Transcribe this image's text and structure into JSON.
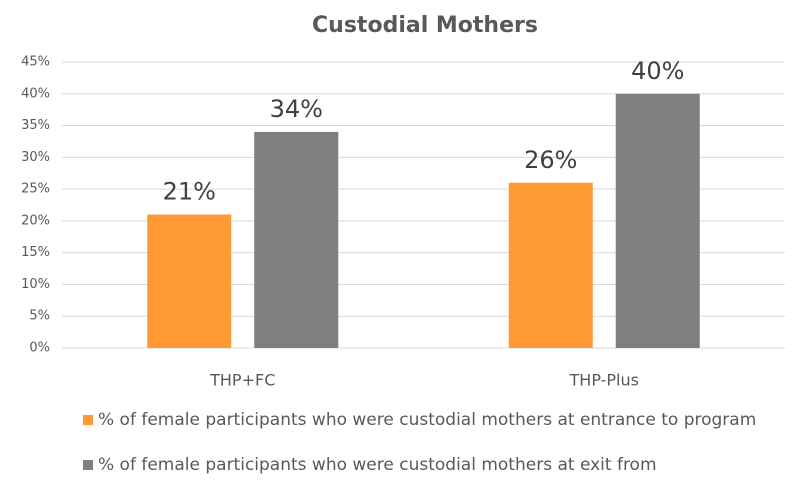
{
  "chart_data": {
    "type": "bar",
    "title": "Custodial Mothers",
    "categories": [
      "THP+FC",
      "THP-Plus"
    ],
    "series": [
      {
        "name": "% of female participants who were custodial mothers at entrance to program",
        "color": "#ff9933",
        "values": [
          21,
          26
        ],
        "value_labels": [
          "21%",
          "26%"
        ]
      },
      {
        "name": "% of female participants who were custodial mothers at exit from",
        "color": "#7f7f7f",
        "values": [
          34,
          40
        ],
        "value_labels": [
          "34%",
          "40%"
        ]
      }
    ],
    "ylim": [
      0,
      45
    ],
    "yticks": [
      {
        "value": 0,
        "label": "0%"
      },
      {
        "value": 5,
        "label": "5%"
      },
      {
        "value": 10,
        "label": "10%"
      },
      {
        "value": 15,
        "label": "15%"
      },
      {
        "value": 20,
        "label": "20%"
      },
      {
        "value": 25,
        "label": "25%"
      },
      {
        "value": 30,
        "label": "30%"
      },
      {
        "value": 35,
        "label": "35%"
      },
      {
        "value": 40,
        "label": "40%"
      },
      {
        "value": 45,
        "label": "45%"
      }
    ],
    "grid": true,
    "legend": "bottom"
  }
}
